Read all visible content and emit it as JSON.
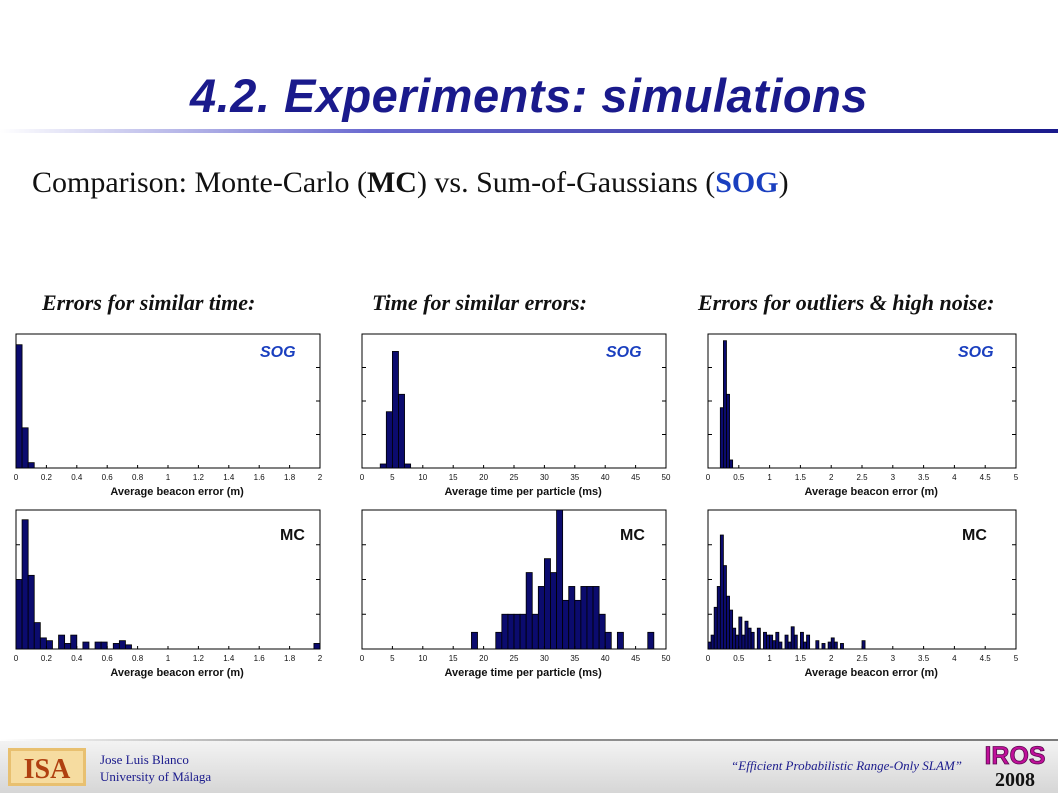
{
  "slide": {
    "title": "4.2. Experiments: simulations",
    "subtitle": {
      "prefix": "Comparison: Monte-Carlo (",
      "mc": "MC",
      "middle": ") vs. Sum-of-Gaussians (",
      "sog": "SOG",
      "suffix": ")"
    },
    "column_headings": [
      "Errors for similar time:",
      "Time for similar errors:",
      "Errors for outliers & high noise:"
    ]
  },
  "footer": {
    "author_name": "Jose Luis Blanco",
    "author_affiliation": "University of Málaga",
    "paper_title": "“Efficient Probabilistic Range-Only SLAM”",
    "left_logo_text": "ISA",
    "right_logo_text": "IROS",
    "right_logo_year": "2008"
  },
  "colors": {
    "title": "#1a1a8c",
    "bar_fill": "#0b0b6e",
    "bar_stroke": "#000000",
    "sog_label": "#1a3fbf"
  },
  "chart_data": [
    {
      "type": "bar",
      "panel": "sog-beacon-error",
      "label": "SOG",
      "xlabel": "Average beacon error (m)",
      "xlim": [
        0,
        2
      ],
      "ylim": [
        0,
        1
      ],
      "xticks": [
        "0",
        "0.2",
        "0.4",
        "0.6",
        "0.8",
        "1",
        "1.2",
        "1.4",
        "1.6",
        "1.8",
        "2"
      ],
      "bin_width": 0.04,
      "grid": false,
      "values": [
        0.92,
        0.3,
        0.04,
        0.0
      ]
    },
    {
      "type": "bar",
      "panel": "sog-time",
      "label": "SOG",
      "xlabel": "Average time per particle (ms)",
      "xlim": [
        0,
        50
      ],
      "ylim": [
        0,
        1
      ],
      "xticks": [
        "0",
        "5",
        "10",
        "15",
        "20",
        "25",
        "30",
        "35",
        "40",
        "45",
        "50"
      ],
      "bin_width": 1,
      "grid": false,
      "values": [
        0,
        0,
        0,
        0.03,
        0.42,
        0.87,
        0.55,
        0.03,
        0,
        0,
        0,
        0,
        0,
        0,
        0,
        0,
        0,
        0,
        0,
        0,
        0,
        0,
        0,
        0,
        0,
        0,
        0,
        0,
        0,
        0,
        0,
        0,
        0,
        0,
        0,
        0,
        0,
        0,
        0,
        0,
        0,
        0,
        0,
        0,
        0,
        0,
        0,
        0,
        0,
        0
      ]
    },
    {
      "type": "bar",
      "panel": "sog-outliers",
      "label": "SOG",
      "xlabel": "Average beacon error (m)",
      "xlim": [
        0,
        5
      ],
      "ylim": [
        0,
        1
      ],
      "xticks": [
        "0",
        "0.5",
        "1",
        "1.5",
        "2",
        "2.5",
        "3",
        "3.5",
        "4",
        "4.5",
        "5"
      ],
      "bin_width": 0.05,
      "grid": false,
      "values": [
        0,
        0,
        0,
        0,
        0.45,
        0.95,
        0.55,
        0.06,
        0,
        0,
        0,
        0,
        0,
        0,
        0,
        0,
        0,
        0,
        0,
        0,
        0,
        0,
        0,
        0,
        0,
        0,
        0,
        0,
        0,
        0,
        0,
        0,
        0,
        0,
        0,
        0,
        0,
        0,
        0,
        0,
        0,
        0,
        0,
        0,
        0,
        0,
        0,
        0,
        0,
        0,
        0,
        0,
        0,
        0,
        0,
        0,
        0,
        0,
        0,
        0
      ]
    },
    {
      "type": "bar",
      "panel": "mc-beacon-error",
      "label": "MC",
      "xlabel": "Average beacon error (m)",
      "xlim": [
        0,
        2
      ],
      "ylim": [
        0,
        1
      ],
      "xticks": [
        "0",
        "0.2",
        "0.4",
        "0.6",
        "0.8",
        "1",
        "1.2",
        "1.4",
        "1.6",
        "1.8",
        "2"
      ],
      "bin_width": 0.04,
      "grid": false,
      "values": [
        0.5,
        0.93,
        0.53,
        0.19,
        0.08,
        0.06,
        0.0,
        0.1,
        0.04,
        0.1,
        0.0,
        0.05,
        0.0,
        0.05,
        0.05,
        0.0,
        0.04,
        0.06,
        0.03,
        0.0,
        0.0,
        0.0,
        0.0,
        0.0,
        0.0,
        0.0,
        0.0,
        0.0,
        0.0,
        0.0,
        0.0,
        0.0,
        0.0,
        0.0,
        0.0,
        0.0,
        0.0,
        0.0,
        0.0,
        0.0,
        0.0,
        0.0,
        0.0,
        0.0,
        0.0,
        0.0,
        0.0,
        0.0,
        0.0,
        0.04
      ]
    },
    {
      "type": "bar",
      "panel": "mc-time",
      "label": "MC",
      "xlabel": "Average time per particle (ms)",
      "xlim": [
        0,
        50
      ],
      "ylim": [
        0,
        1
      ],
      "xticks": [
        "0",
        "5",
        "10",
        "15",
        "20",
        "25",
        "30",
        "35",
        "40",
        "45",
        "50"
      ],
      "bin_width": 1,
      "grid": false,
      "values": [
        0,
        0,
        0,
        0,
        0,
        0,
        0,
        0,
        0,
        0,
        0,
        0,
        0,
        0,
        0,
        0,
        0,
        0,
        0.12,
        0,
        0,
        0,
        0.12,
        0.25,
        0.25,
        0.25,
        0.25,
        0.55,
        0.25,
        0.45,
        0.65,
        0.55,
        1.0,
        0.35,
        0.45,
        0.35,
        0.45,
        0.45,
        0.45,
        0.25,
        0.12,
        0,
        0.12,
        0,
        0,
        0,
        0,
        0.12,
        0,
        0
      ]
    },
    {
      "type": "bar",
      "panel": "mc-outliers",
      "label": "MC",
      "xlabel": "Average beacon error (m)",
      "xlim": [
        0,
        5
      ],
      "ylim": [
        0,
        1
      ],
      "xticks": [
        "0",
        "0.5",
        "1",
        "1.5",
        "2",
        "2.5",
        "3",
        "3.5",
        "4",
        "4.5",
        "5"
      ],
      "bin_width": 0.05,
      "grid": false,
      "values": [
        0.05,
        0.1,
        0.3,
        0.45,
        0.82,
        0.6,
        0.38,
        0.28,
        0.15,
        0.1,
        0.23,
        0.1,
        0.2,
        0.15,
        0.12,
        0.0,
        0.15,
        0.0,
        0.12,
        0.1,
        0.1,
        0.06,
        0.12,
        0.05,
        0.0,
        0.1,
        0.05,
        0.16,
        0.1,
        0.0,
        0.12,
        0.05,
        0.1,
        0.0,
        0.0,
        0.06,
        0.0,
        0.04,
        0.0,
        0.05,
        0.08,
        0.05,
        0.0,
        0.04,
        0.0,
        0.0,
        0.0,
        0.0,
        0.0,
        0.0,
        0.06,
        0.0,
        0.0,
        0.0,
        0.0,
        0.0,
        0.0,
        0.0,
        0.0,
        0.0
      ]
    }
  ]
}
